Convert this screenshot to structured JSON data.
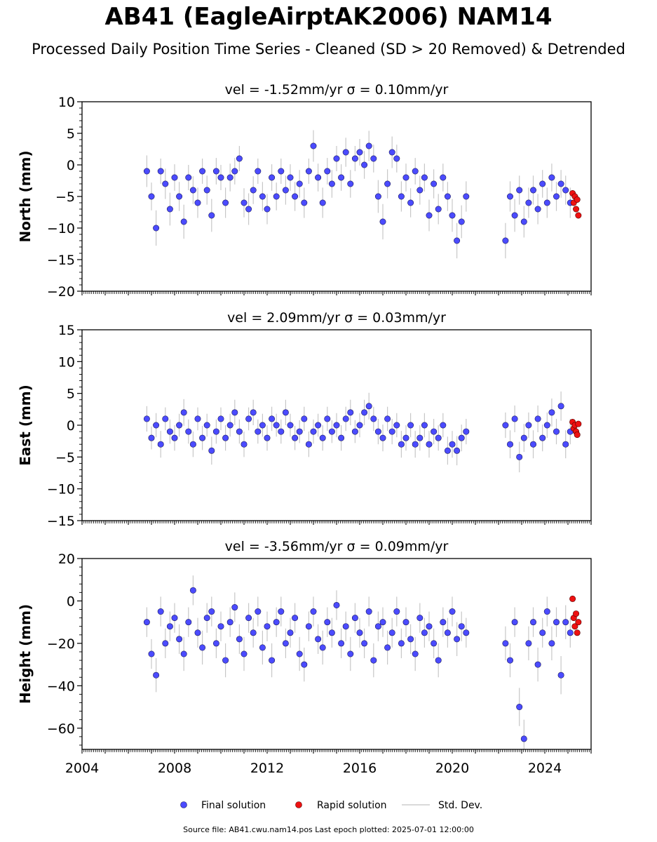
{
  "page": {
    "title": "AB41 (EagleAirptAK2006) NAM14",
    "subtitle": "Processed Daily Position Time Series - Cleaned (SD > 20 Removed) & Detrended",
    "source_line": "Source file: AB41.cwu.nam14.pos  Last epoch plotted: 2025-07-01 12:00:00"
  },
  "colors": {
    "final": "#4b4bff",
    "final_edge": "#1a1a5a",
    "rapid": "#ee1111",
    "rapid_edge": "#550000",
    "stddev": "#9a9a9a"
  },
  "legend": {
    "final": "Final solution",
    "rapid": "Rapid solution",
    "stddev": "Std. Dev."
  },
  "chart_data": [
    {
      "type": "scatter",
      "component": "north",
      "title": "vel = -1.52mm/yr   σ = 0.10mm/yr",
      "ylabel": "North (mm)",
      "xlim": [
        2004,
        2026
      ],
      "ylim": [
        -20,
        10
      ],
      "yticks": [
        -20,
        -15,
        -10,
        -5,
        0,
        5,
        10
      ],
      "xticks": [
        2004,
        2008,
        2012,
        2016,
        2020,
        2024
      ],
      "final_solution": {
        "x": [
          2006.8,
          2007.0,
          2007.2,
          2007.4,
          2007.6,
          2007.8,
          2008.0,
          2008.2,
          2008.4,
          2008.6,
          2008.8,
          2009.0,
          2009.2,
          2009.4,
          2009.6,
          2009.8,
          2010.0,
          2010.2,
          2010.4,
          2010.6,
          2010.8,
          2011.0,
          2011.2,
          2011.4,
          2011.6,
          2011.8,
          2012.0,
          2012.2,
          2012.4,
          2012.6,
          2012.8,
          2013.0,
          2013.2,
          2013.4,
          2013.6,
          2013.8,
          2014.0,
          2014.2,
          2014.4,
          2014.6,
          2014.8,
          2015.0,
          2015.2,
          2015.4,
          2015.6,
          2015.8,
          2016.0,
          2016.2,
          2016.4,
          2016.6,
          2016.8,
          2017.0,
          2017.2,
          2017.4,
          2017.6,
          2017.8,
          2018.0,
          2018.2,
          2018.4,
          2018.6,
          2018.8,
          2019.0,
          2019.2,
          2019.4,
          2019.6,
          2019.8,
          2020.0,
          2020.2,
          2020.4,
          2020.6,
          2022.3,
          2022.5,
          2022.7,
          2022.9,
          2023.1,
          2023.3,
          2023.5,
          2023.7,
          2023.9,
          2024.1,
          2024.3,
          2024.5,
          2024.7,
          2024.9,
          2025.1
        ],
        "y": [
          -1,
          -5,
          -10,
          -1,
          -3,
          -7,
          -2,
          -5,
          -9,
          -2,
          -4,
          -6,
          -1,
          -4,
          -8,
          -1,
          -2,
          -6,
          -2,
          -1,
          1,
          -6,
          -7,
          -4,
          -1,
          -5,
          -7,
          -2,
          -5,
          -1,
          -4,
          -2,
          -5,
          -3,
          -6,
          -1,
          3,
          -2,
          -6,
          -1,
          -3,
          1,
          -2,
          2,
          -3,
          1,
          2,
          0,
          3,
          1,
          -5,
          -9,
          -3,
          2,
          1,
          -5,
          -2,
          -6,
          -1,
          -4,
          -2,
          -8,
          -3,
          -7,
          -2,
          -5,
          -8,
          -12,
          -9,
          -5,
          -12,
          -5,
          -8,
          -4,
          -9,
          -6,
          -4,
          -7,
          -3,
          -6,
          -2,
          -5,
          -3,
          -4,
          -6
        ],
        "err": [
          2.5,
          2.2,
          2.8,
          2.0,
          2.4,
          2.6,
          2.1,
          2.3,
          2.7,
          2.0,
          2.2,
          2.4,
          2.0,
          2.3,
          2.6,
          2.1,
          2.0,
          2.4,
          2.2,
          2.1,
          2.0,
          2.3,
          2.5,
          2.2,
          2.0,
          2.3,
          2.4,
          2.1,
          2.2,
          2.0,
          2.3,
          2.1,
          2.3,
          2.2,
          2.4,
          2.0,
          2.5,
          2.2,
          2.4,
          2.1,
          2.2,
          2.0,
          2.1,
          2.3,
          2.2,
          2.0,
          2.1,
          2.2,
          2.4,
          2.2,
          2.6,
          2.8,
          2.3,
          2.5,
          2.2,
          2.4,
          2.2,
          2.3,
          2.1,
          2.3,
          2.2,
          2.5,
          2.3,
          2.4,
          2.2,
          2.3,
          2.6,
          2.8,
          2.6,
          2.4,
          2.8,
          2.4,
          2.6,
          2.3,
          2.5,
          2.4,
          2.3,
          2.4,
          2.2,
          2.4,
          2.2,
          2.3,
          2.2,
          2.3,
          2.4
        ]
      },
      "rapid_solution": {
        "x": [
          2025.2,
          2025.25,
          2025.3,
          2025.35,
          2025.4,
          2025.45
        ],
        "y": [
          -4.5,
          -6,
          -5,
          -7,
          -5.5,
          -8
        ]
      }
    },
    {
      "type": "scatter",
      "component": "east",
      "title": "vel = 2.09mm/yr   σ = 0.03mm/yr",
      "ylabel": "East (mm)",
      "xlim": [
        2004,
        2026
      ],
      "ylim": [
        -15,
        15
      ],
      "yticks": [
        -15,
        -10,
        -5,
        0,
        5,
        10,
        15
      ],
      "xticks": [
        2004,
        2008,
        2012,
        2016,
        2020,
        2024
      ],
      "final_solution": {
        "x": [
          2006.8,
          2007.0,
          2007.2,
          2007.4,
          2007.6,
          2007.8,
          2008.0,
          2008.2,
          2008.4,
          2008.6,
          2008.8,
          2009.0,
          2009.2,
          2009.4,
          2009.6,
          2009.8,
          2010.0,
          2010.2,
          2010.4,
          2010.6,
          2010.8,
          2011.0,
          2011.2,
          2011.4,
          2011.6,
          2011.8,
          2012.0,
          2012.2,
          2012.4,
          2012.6,
          2012.8,
          2013.0,
          2013.2,
          2013.4,
          2013.6,
          2013.8,
          2014.0,
          2014.2,
          2014.4,
          2014.6,
          2014.8,
          2015.0,
          2015.2,
          2015.4,
          2015.6,
          2015.8,
          2016.0,
          2016.2,
          2016.4,
          2016.6,
          2016.8,
          2017.0,
          2017.2,
          2017.4,
          2017.6,
          2017.8,
          2018.0,
          2018.2,
          2018.4,
          2018.6,
          2018.8,
          2019.0,
          2019.2,
          2019.4,
          2019.6,
          2019.8,
          2020.0,
          2020.2,
          2020.4,
          2020.6,
          2022.3,
          2022.5,
          2022.7,
          2022.9,
          2023.1,
          2023.3,
          2023.5,
          2023.7,
          2023.9,
          2024.1,
          2024.3,
          2024.5,
          2024.7,
          2024.9,
          2025.1
        ],
        "y": [
          1,
          -2,
          0,
          -3,
          1,
          -1,
          -2,
          0,
          2,
          -1,
          -3,
          1,
          -2,
          0,
          -4,
          -1,
          1,
          -2,
          0,
          2,
          -1,
          -3,
          1,
          2,
          -1,
          0,
          -2,
          1,
          0,
          -1,
          2,
          0,
          -2,
          -1,
          1,
          -3,
          -1,
          0,
          -2,
          1,
          -1,
          0,
          -2,
          1,
          2,
          -1,
          0,
          2,
          3,
          1,
          -1,
          -2,
          1,
          -1,
          0,
          -3,
          -2,
          0,
          -3,
          -2,
          0,
          -3,
          -1,
          -2,
          0,
          -4,
          -3,
          -4,
          -2,
          -1,
          0,
          -3,
          1,
          -5,
          -2,
          0,
          -3,
          1,
          -2,
          0,
          2,
          -1,
          3,
          -3,
          -1
        ],
        "err": [
          2.0,
          1.8,
          1.9,
          2.1,
          1.8,
          1.9,
          2.0,
          1.8,
          2.1,
          1.9,
          2.0,
          1.8,
          1.9,
          1.8,
          2.2,
          1.9,
          1.8,
          2.0,
          1.8,
          2.0,
          1.9,
          2.0,
          1.8,
          2.0,
          1.9,
          1.8,
          2.0,
          1.9,
          1.8,
          1.9,
          2.0,
          1.8,
          1.9,
          1.8,
          1.9,
          2.0,
          1.9,
          1.8,
          2.0,
          1.9,
          1.8,
          1.9,
          2.0,
          1.9,
          2.0,
          1.8,
          1.9,
          2.0,
          2.1,
          1.9,
          2.0,
          2.1,
          1.9,
          2.0,
          1.9,
          2.1,
          2.0,
          1.9,
          2.1,
          2.0,
          1.9,
          2.1,
          2.0,
          2.0,
          1.9,
          2.2,
          2.1,
          2.3,
          2.1,
          2.0,
          2.0,
          2.2,
          2.1,
          2.4,
          2.2,
          2.0,
          2.2,
          2.1,
          2.1,
          2.0,
          2.2,
          2.0,
          2.3,
          2.2,
          2.0
        ]
      },
      "rapid_solution": {
        "x": [
          2025.2,
          2025.25,
          2025.3,
          2025.35,
          2025.4,
          2025.45
        ],
        "y": [
          0.5,
          -0.5,
          0,
          -1,
          -1.5,
          0.2
        ]
      }
    },
    {
      "type": "scatter",
      "component": "height",
      "title": "vel = -3.56mm/yr   σ = 0.09mm/yr",
      "ylabel": "Height (mm)",
      "xlim": [
        2004,
        2026
      ],
      "ylim": [
        -70,
        20
      ],
      "yticks": [
        -60,
        -40,
        -20,
        0,
        20
      ],
      "xticks": [
        2004,
        2008,
        2012,
        2016,
        2020,
        2024
      ],
      "final_solution": {
        "x": [
          2006.8,
          2007.0,
          2007.2,
          2007.4,
          2007.6,
          2007.8,
          2008.0,
          2008.2,
          2008.4,
          2008.6,
          2008.8,
          2009.0,
          2009.2,
          2009.4,
          2009.6,
          2009.8,
          2010.0,
          2010.2,
          2010.4,
          2010.6,
          2010.8,
          2011.0,
          2011.2,
          2011.4,
          2011.6,
          2011.8,
          2012.0,
          2012.2,
          2012.4,
          2012.6,
          2012.8,
          2013.0,
          2013.2,
          2013.4,
          2013.6,
          2013.8,
          2014.0,
          2014.2,
          2014.4,
          2014.6,
          2014.8,
          2015.0,
          2015.2,
          2015.4,
          2015.6,
          2015.8,
          2016.0,
          2016.2,
          2016.4,
          2016.6,
          2016.8,
          2017.0,
          2017.2,
          2017.4,
          2017.6,
          2017.8,
          2018.0,
          2018.2,
          2018.4,
          2018.6,
          2018.8,
          2019.0,
          2019.2,
          2019.4,
          2019.6,
          2019.8,
          2020.0,
          2020.2,
          2020.4,
          2020.6,
          2022.3,
          2022.5,
          2022.7,
          2022.9,
          2023.1,
          2023.3,
          2023.5,
          2023.7,
          2023.9,
          2024.1,
          2024.3,
          2024.5,
          2024.7,
          2024.9,
          2025.1
        ],
        "y": [
          -10,
          -25,
          -35,
          -5,
          -20,
          -12,
          -8,
          -18,
          -25,
          -10,
          5,
          -15,
          -22,
          -8,
          -5,
          -20,
          -12,
          -28,
          -10,
          -3,
          -18,
          -25,
          -8,
          -15,
          -5,
          -22,
          -12,
          -28,
          -10,
          -5,
          -20,
          -15,
          -8,
          -25,
          -30,
          -12,
          -5,
          -18,
          -22,
          -10,
          -15,
          -2,
          -20,
          -12,
          -25,
          -8,
          -15,
          -20,
          -5,
          -28,
          -12,
          -10,
          -22,
          -15,
          -5,
          -20,
          -10,
          -18,
          -25,
          -8,
          -15,
          -12,
          -20,
          -28,
          -10,
          -15,
          -5,
          -18,
          -12,
          -15,
          -20,
          -28,
          -10,
          -50,
          -65,
          -20,
          -10,
          -30,
          -15,
          -5,
          -20,
          -10,
          -35,
          -10,
          -15
        ],
        "err": [
          7,
          7,
          8,
          7,
          7,
          7,
          7,
          7,
          8,
          7,
          7,
          7,
          8,
          7,
          7,
          7,
          7,
          8,
          7,
          7,
          7,
          8,
          7,
          7,
          7,
          8,
          7,
          8,
          7,
          7,
          7,
          7,
          7,
          8,
          8,
          7,
          7,
          7,
          8,
          7,
          7,
          7,
          7,
          7,
          8,
          7,
          7,
          7,
          7,
          8,
          7,
          7,
          8,
          7,
          7,
          7,
          7,
          7,
          8,
          7,
          7,
          7,
          7,
          8,
          7,
          7,
          7,
          8,
          7,
          7,
          8,
          8,
          7,
          9,
          9,
          8,
          7,
          8,
          7,
          7,
          8,
          7,
          9,
          8,
          7
        ]
      },
      "rapid_solution": {
        "x": [
          2025.2,
          2025.25,
          2025.3,
          2025.35,
          2025.4,
          2025.45
        ],
        "y": [
          1,
          -8,
          -12,
          -6,
          -15,
          -10
        ]
      }
    }
  ]
}
